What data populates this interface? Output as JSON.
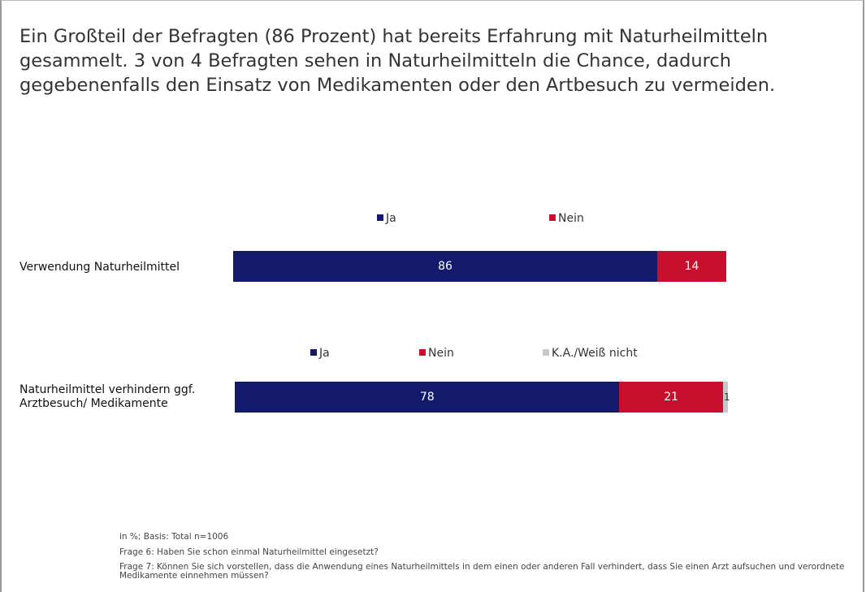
{
  "title": "Ein Großteil der Befragten (86 Prozent) hat bereits Erfahrung mit Naturheilmitteln gesammelt. 3 von 4 Befragten sehen in Naturheilmitteln die Chance, dadurch gegebenenfalls den Einsatz von Medikamenten oder den Artbesuch zu vermeiden.",
  "notes": [
    "in %; Basis: Total n=1006",
    "Frage 6: Haben Sie schon einmal Naturheilmittel eingesetzt?",
    "Frage 7: Können Sie sich vorstellen, dass die Anwendung eines Naturheilmittels in dem einen oder anderen Fall verhindert, dass Sie einen Arzt aufsuchen und verordnete Medikamente einnehmen müssen?"
  ],
  "chart_data": [
    {
      "type": "stacked-bar",
      "orientation": "horizontal",
      "categories": [
        "Verwendung Naturheilmittel"
      ],
      "series": [
        {
          "name": "Ja",
          "color": "#141a6b",
          "values": [
            86
          ]
        },
        {
          "name": "Nein",
          "color": "#c8102e",
          "values": [
            14
          ]
        }
      ]
    },
    {
      "type": "stacked-bar",
      "orientation": "horizontal",
      "categories": [
        "Naturheilmittel verhindern ggf. Arztbesuch/ Medikamente"
      ],
      "series": [
        {
          "name": "Ja",
          "color": "#141a6b",
          "values": [
            78
          ]
        },
        {
          "name": "Nein",
          "color": "#c8102e",
          "values": [
            21
          ]
        },
        {
          "name": "K.A./Weiß nicht",
          "color": "#c8c8c8",
          "values": [
            1
          ]
        }
      ]
    }
  ]
}
